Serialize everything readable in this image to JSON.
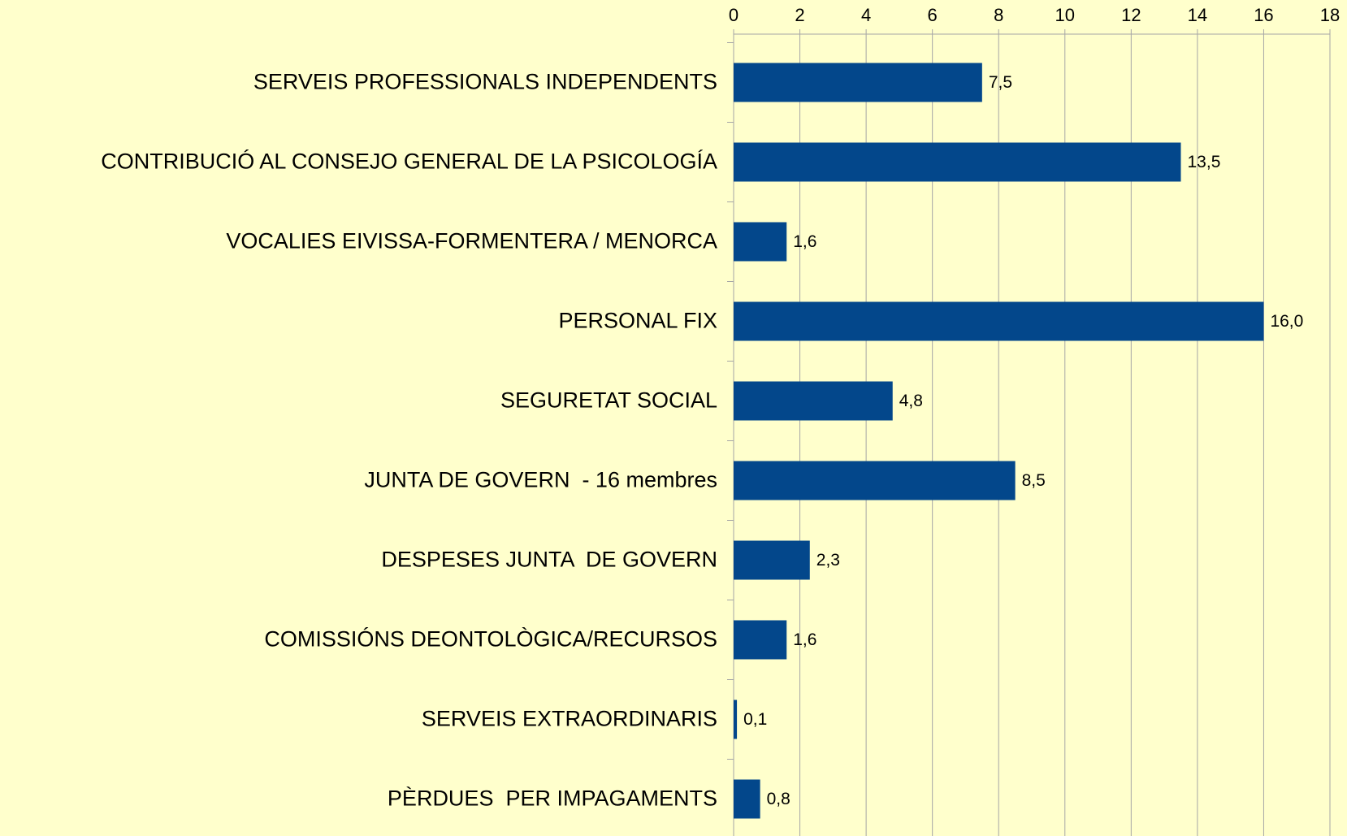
{
  "chart_data": {
    "type": "bar",
    "orientation": "horizontal",
    "categories": [
      "SERVEIS PROFESSIONALS INDEPENDENTS",
      "CONTRIBUCIÓ AL CONSEJO GENERAL DE LA PSICOLOGÍA",
      "VOCALIES EIVISSA-FORMENTERA / MENORCA",
      "PERSONAL FIX",
      "SEGURETAT SOCIAL",
      "JUNTA DE GOVERN  - 16 membres",
      "DESPESES JUNTA  DE GOVERN",
      "COMISSIÓNS DEONTOLÒGICA/RECURSOS",
      "SERVEIS EXTRAORDINARIS",
      "PÈRDUES  PER IMPAGAMENTS"
    ],
    "values": [
      7.5,
      13.5,
      1.6,
      16.0,
      4.8,
      8.5,
      2.3,
      1.6,
      0.1,
      0.8
    ],
    "value_labels": [
      "7,5",
      "13,5",
      "1,6",
      "16,0",
      "4,8",
      "8,5",
      "2,3",
      "1,6",
      "0,1",
      "0,8"
    ],
    "color": "#03478b",
    "xlim": [
      0,
      18
    ],
    "xticks": [
      0,
      2,
      4,
      6,
      8,
      10,
      12,
      14,
      16,
      18
    ],
    "grid": true
  }
}
